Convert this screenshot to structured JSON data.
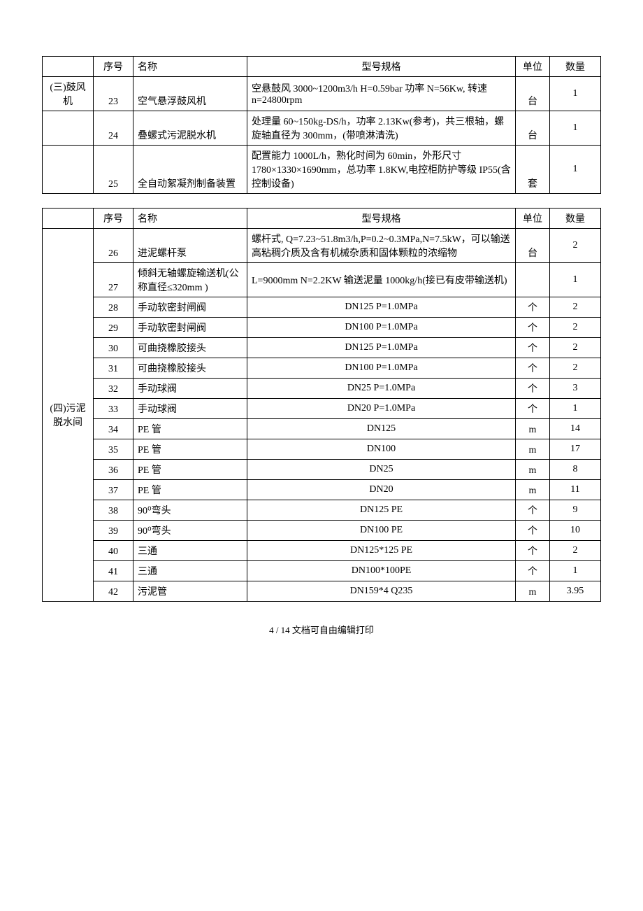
{
  "headers": {
    "seq": "序号",
    "name": "名称",
    "spec": "型号规格",
    "unit": "单位",
    "qty": "数量"
  },
  "table1": {
    "section": "(三)鼓风机",
    "rows": [
      {
        "seq": "23",
        "name": "空气悬浮鼓风机",
        "spec": "空悬鼓风 3000~1200m3/h  H=0.59bar 功率 N=56Kw, 转速 n=24800rpm",
        "unit": "台",
        "qty": "1"
      },
      {
        "seq": "24",
        "name": "叠螺式污泥脱水机",
        "spec": "处理量 60~150kg-DS/h，功率 2.13Kw(参考)，共三根轴，螺旋轴直径为 300mm，(带喷淋清洗)",
        "unit": "台",
        "qty": "1"
      },
      {
        "seq": "25",
        "name": "全自动絮凝剂制备装置",
        "spec": "配置能力 1000L/h，熟化时间为 60min，外形尺寸 1780×1330×1690mm，总功率 1.8KW,电控柜防护等级 IP55(含控制设备)",
        "unit": "套",
        "qty": "1"
      }
    ]
  },
  "table2": {
    "section": "(四)污泥脱水间",
    "rows": [
      {
        "seq": "26",
        "name": "进泥螺杆泵",
        "spec": "螺杆式, Q=7.23~51.8m3/h,P=0.2~0.3MPa,N=7.5kW，可以输送高粘稠介质及含有机械杂质和固体颗粒的浓缩物",
        "unit": "台",
        "qty": "2",
        "specCenter": false
      },
      {
        "seq": "27",
        "name": "倾斜无轴螺旋输送机(公称直径≤320mm )",
        "spec": "L=9000mm N=2.2KW 输送泥量 1000kg/h(接已有皮带输送机)",
        "unit": "",
        "qty": "1",
        "specCenter": false
      },
      {
        "seq": "28",
        "name": "手动软密封闸阀",
        "spec": "DN125 P=1.0MPa",
        "unit": "个",
        "qty": "2",
        "specCenter": true
      },
      {
        "seq": "29",
        "name": "手动软密封闸阀",
        "spec": "DN100 P=1.0MPa",
        "unit": "个",
        "qty": "2",
        "specCenter": true
      },
      {
        "seq": "30",
        "name": "可曲挠橡胶接头",
        "spec": "DN125 P=1.0MPa",
        "unit": "个",
        "qty": "2",
        "specCenter": true
      },
      {
        "seq": "31",
        "name": "可曲挠橡胶接头",
        "spec": "DN100 P=1.0MPa",
        "unit": "个",
        "qty": "2",
        "specCenter": true
      },
      {
        "seq": "32",
        "name": "手动球阀",
        "spec": "DN25 P=1.0MPa",
        "unit": "个",
        "qty": "3",
        "specCenter": true
      },
      {
        "seq": "33",
        "name": "手动球阀",
        "spec": "DN20 P=1.0MPa",
        "unit": "个",
        "qty": "1",
        "specCenter": true
      },
      {
        "seq": "34",
        "name": "PE 管",
        "spec": "DN125",
        "unit": "m",
        "qty": "14",
        "specCenter": true
      },
      {
        "seq": "35",
        "name": "PE 管",
        "spec": "DN100",
        "unit": "m",
        "qty": "17",
        "specCenter": true
      },
      {
        "seq": "36",
        "name": "PE 管",
        "spec": "DN25",
        "unit": "m",
        "qty": "8",
        "specCenter": true
      },
      {
        "seq": "37",
        "name": "PE 管",
        "spec": "DN20",
        "unit": "m",
        "qty": "11",
        "specCenter": true
      },
      {
        "seq": "38",
        "name": "90⁰弯头",
        "spec": "DN125 PE",
        "unit": "个",
        "qty": "9",
        "specCenter": true
      },
      {
        "seq": "39",
        "name": "90⁰弯头",
        "spec": "DN100 PE",
        "unit": "个",
        "qty": "10",
        "specCenter": true
      },
      {
        "seq": "40",
        "name": "三通",
        "spec": "DN125*125 PE",
        "unit": "个",
        "qty": "2",
        "specCenter": true
      },
      {
        "seq": "41",
        "name": "三通",
        "spec": "DN100*100PE",
        "unit": "个",
        "qty": "1",
        "specCenter": true
      },
      {
        "seq": "42",
        "name": "污泥管",
        "spec": "DN159*4 Q235",
        "unit": "m",
        "qty": "3.95",
        "specCenter": true
      }
    ]
  },
  "footer": "4 / 14 文档可自由编辑打印"
}
